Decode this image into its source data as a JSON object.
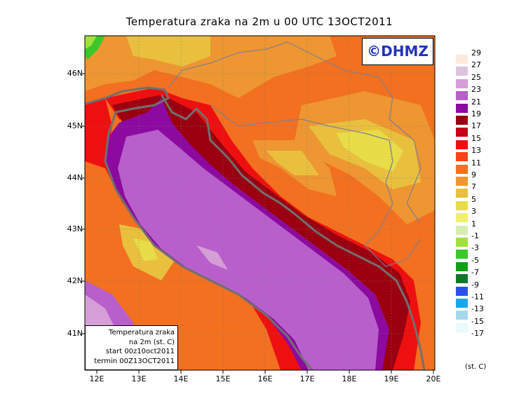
{
  "title": "Temperatura zraka na 2m u 00 UTC 13OCT2011",
  "logo_text": "©DHMZ",
  "lat_ticks": [
    "46N",
    "45N",
    "44N",
    "43N",
    "42N",
    "41N"
  ],
  "lon_ticks": [
    "12E",
    "13E",
    "14E",
    "15E",
    "16E",
    "17E",
    "18E",
    "19E",
    "20E"
  ],
  "info": {
    "line1": "Temperatura zraka",
    "line2": "na 2m (st. C)",
    "line3": "start 00z10oct2011",
    "line4": "termin 00Z13OCT2011"
  },
  "legend": {
    "labels": [
      "29",
      "27",
      "25",
      "23",
      "21",
      "19",
      "17",
      "15",
      "13",
      "11",
      "9",
      "7",
      "5",
      "3",
      "1",
      "-1",
      "-3",
      "-5",
      "-7",
      "-9",
      "-11",
      "-13",
      "-15",
      "-17"
    ],
    "colors": [
      "#fbeadc",
      "#dcc4dc",
      "#d69ed6",
      "#b85fcc",
      "#8c0aa0",
      "#9a0010",
      "#c80018",
      "#ee1010",
      "#f84418",
      "#f27020",
      "#ee9632",
      "#e9c03e",
      "#e8dc48",
      "#f0f070",
      "#d8ecb0",
      "#a2e03e",
      "#3cc82a",
      "#10a014",
      "#107828",
      "#2850f0",
      "#1aa6ee",
      "#a8d8ec",
      "#e8fafa"
    ],
    "unit": "(st. C)"
  }
}
